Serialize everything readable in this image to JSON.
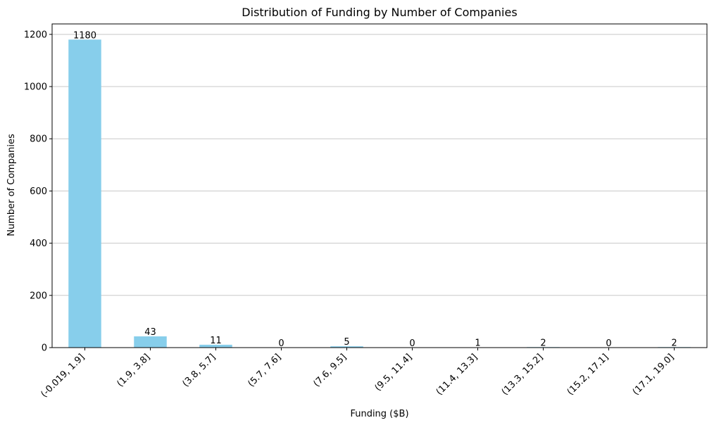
{
  "chart_data": {
    "type": "bar",
    "title": "Distribution of Funding by Number of Companies",
    "xlabel": "Funding ($B)",
    "ylabel": "Number of Companies",
    "categories": [
      "(-0.019, 1.9]",
      "(1.9, 3.8]",
      "(3.8, 5.7]",
      "(5.7, 7.6]",
      "(7.6, 9.5]",
      "(9.5, 11.4]",
      "(11.4, 13.3]",
      "(13.3, 15.2]",
      "(15.2, 17.1]",
      "(17.1, 19.0]"
    ],
    "values": [
      1180,
      43,
      11,
      0,
      5,
      0,
      1,
      2,
      0,
      2
    ],
    "ylim": [
      0,
      1240
    ],
    "yticks": [
      0,
      200,
      400,
      600,
      800,
      1000,
      1200
    ],
    "grid": "y",
    "bar_color": "#87ceeb",
    "grid_color": "#c8c8c8",
    "data_labels": true,
    "xtick_rotation": 45
  }
}
